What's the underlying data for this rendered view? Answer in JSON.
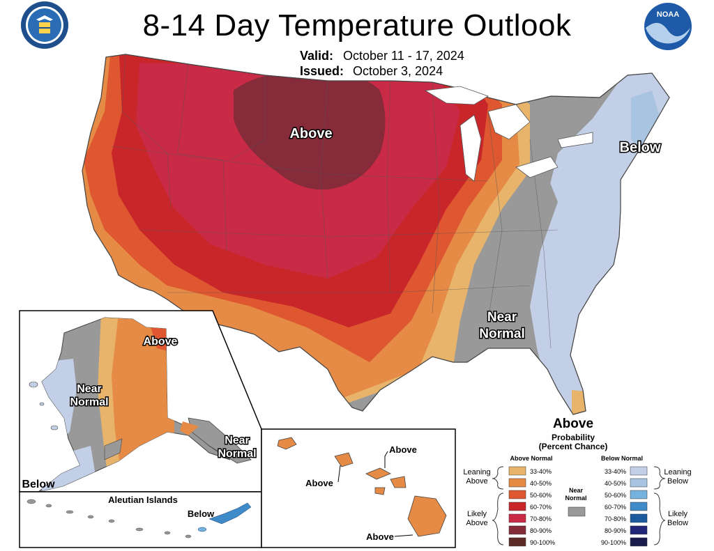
{
  "title": "8-14 Day Temperature Outlook",
  "valid_label": "Valid:",
  "valid_value": "October 11 - 17, 2024",
  "issued_label": "Issued:",
  "issued_value": "October 3, 2024",
  "logos": {
    "left": "doc-seal-icon",
    "right": "noaa-logo-icon"
  },
  "region_labels": {
    "conus_above": "Above",
    "conus_below": "Below",
    "conus_near_normal_1": "Near",
    "conus_near_normal_2": "Normal",
    "florida_above": "Above",
    "alaska_above": "Above",
    "alaska_near_normal_1": "Near",
    "alaska_near_normal_2": "Normal",
    "alaska_se_near_1": "Near",
    "alaska_se_near_2": "Normal",
    "alaska_below": "Below",
    "aleutian_title": "Aleutian Islands",
    "aleutian_below": "Below",
    "hawaii_above_1": "Above",
    "hawaii_above_2": "Above",
    "hawaii_above_3": "Above"
  },
  "legend": {
    "title_1": "Probability",
    "title_2": "(Percent Chance)",
    "above_header": "Above Normal",
    "below_header": "Below Normal",
    "near_label_1": "Near",
    "near_label_2": "Normal",
    "leaning_above_1": "Leaning",
    "leaning_above_2": "Above",
    "likely_above_1": "Likely",
    "likely_above_2": "Above",
    "leaning_below_1": "Leaning",
    "leaning_below_2": "Below",
    "likely_below_1": "Likely",
    "likely_below_2": "Below",
    "near_color": "#999999",
    "above_bins": [
      {
        "range": "33-40%",
        "color": "#E8B36B"
      },
      {
        "range": "40-50%",
        "color": "#E68B45"
      },
      {
        "range": "50-60%",
        "color": "#DE5730"
      },
      {
        "range": "60-70%",
        "color": "#C9262A"
      },
      {
        "range": "70-80%",
        "color": "#C92A45"
      },
      {
        "range": "80-90%",
        "color": "#852B3A"
      },
      {
        "range": "90-100%",
        "color": "#5E2A28"
      }
    ],
    "below_bins": [
      {
        "range": "33-40%",
        "color": "#C3CFE6"
      },
      {
        "range": "40-50%",
        "color": "#A8C4E0"
      },
      {
        "range": "50-60%",
        "color": "#76B2DE"
      },
      {
        "range": "60-70%",
        "color": "#3F8BCA"
      },
      {
        "range": "70-80%",
        "color": "#1B5B9E"
      },
      {
        "range": "80-90%",
        "color": "#22277A"
      },
      {
        "range": "90-100%",
        "color": "#1B1C4E"
      }
    ]
  }
}
